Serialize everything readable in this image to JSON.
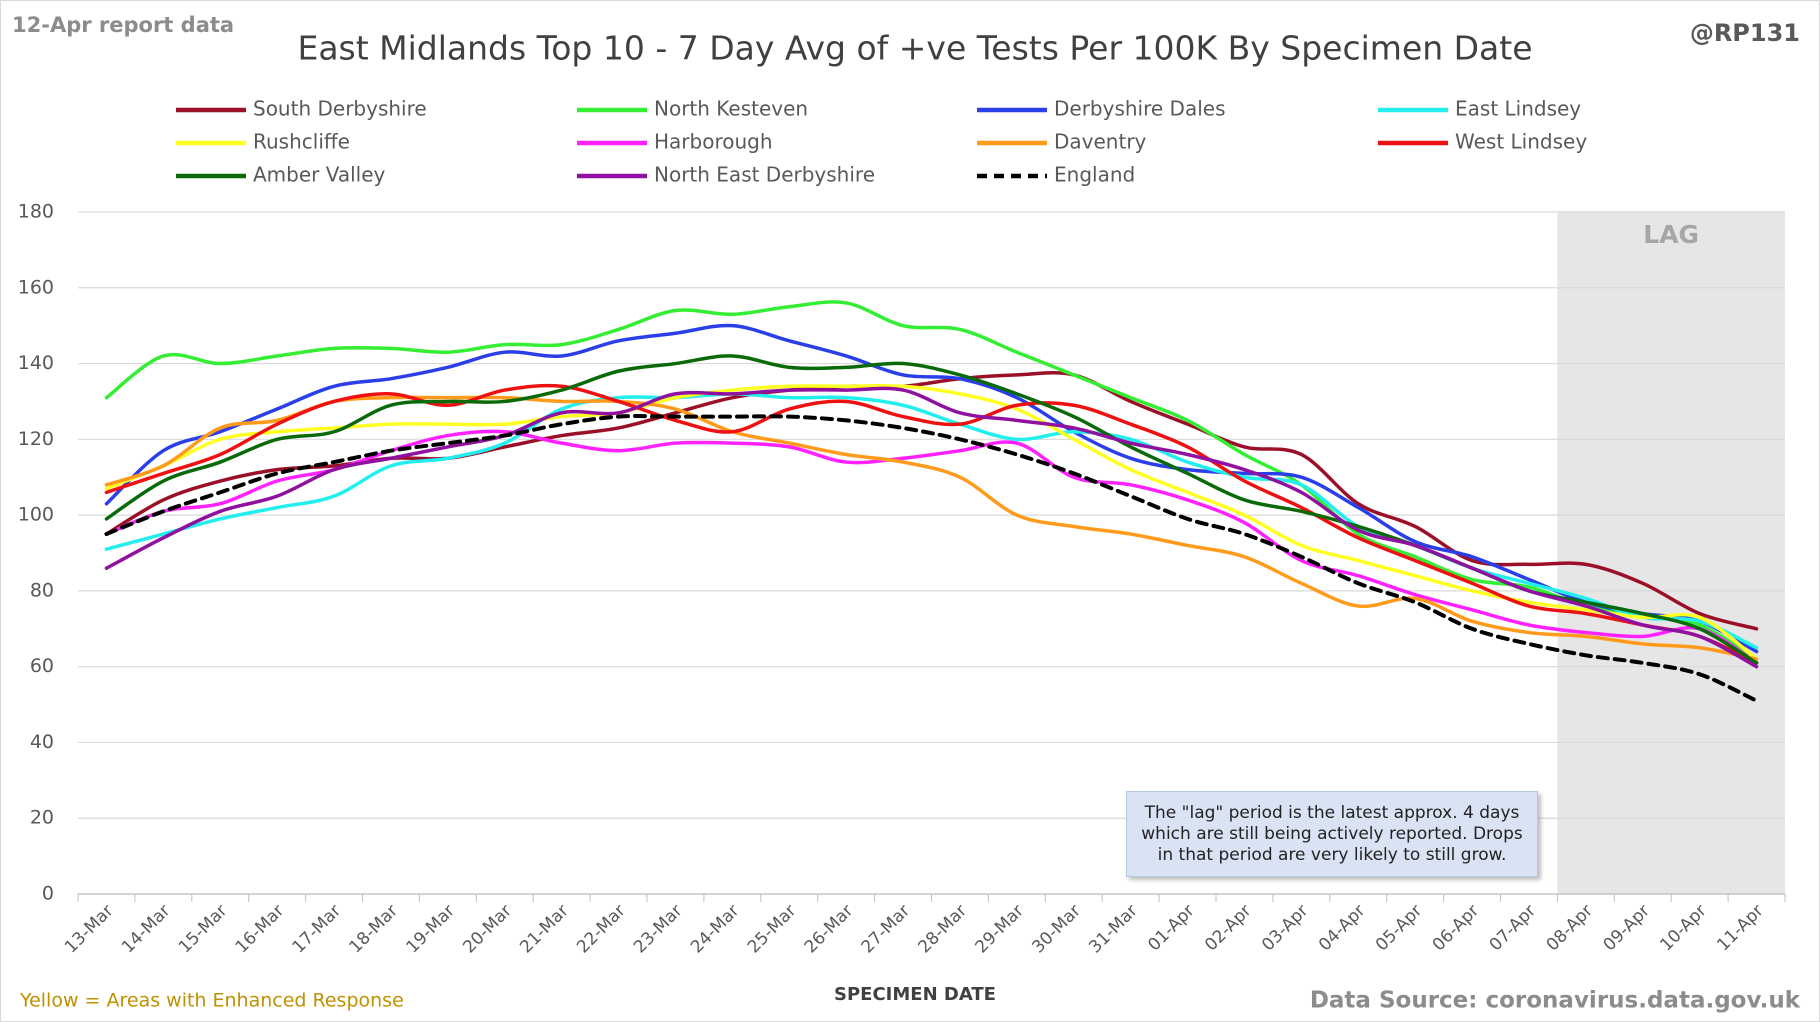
{
  "chart_data": {
    "type": "line",
    "title": "East Midlands Top 10 - 7 Day Avg of +ve Tests Per 100K By Specimen Date",
    "report_note": "12-Apr report data",
    "credit": "@RP131",
    "x_label": "SPECIMEN DATE",
    "footnote": "Yellow = Areas with Enhanced Response",
    "source": "Data Source: coronavirus.data.gov.uk",
    "lag_label": "LAG",
    "lag_from": "08-Apr",
    "annotation": "The \"lag\" period is the latest approx. 4 days which are still being actively reported.  Drops in that period are very likely to still grow.",
    "grid": true,
    "ylim": [
      0,
      180
    ],
    "yticks": [
      0,
      20,
      40,
      60,
      80,
      100,
      120,
      140,
      160,
      180
    ],
    "categories": [
      "13-Mar",
      "14-Mar",
      "15-Mar",
      "16-Mar",
      "17-Mar",
      "18-Mar",
      "19-Mar",
      "20-Mar",
      "21-Mar",
      "22-Mar",
      "23-Mar",
      "24-Mar",
      "25-Mar",
      "26-Mar",
      "27-Mar",
      "28-Mar",
      "29-Mar",
      "30-Mar",
      "31-Mar",
      "01-Apr",
      "02-Apr",
      "03-Apr",
      "04-Apr",
      "05-Apr",
      "06-Apr",
      "07-Apr",
      "08-Apr",
      "09-Apr",
      "10-Apr",
      "11-Apr"
    ],
    "series": [
      {
        "name": "South Derbyshire",
        "color": "#9b1028",
        "values": [
          95,
          104,
          109,
          112,
          113,
          115,
          115,
          118,
          121,
          123,
          127,
          131,
          133,
          134,
          134,
          136,
          137,
          137,
          130,
          124,
          118,
          116,
          103,
          97,
          88,
          87,
          87,
          82,
          74,
          70
        ]
      },
      {
        "name": "North Kesteven",
        "color": "#33ee33",
        "values": [
          131,
          142,
          140,
          142,
          144,
          144,
          143,
          145,
          145,
          149,
          154,
          153,
          155,
          156,
          150,
          149,
          143,
          137,
          131,
          125,
          116,
          108,
          95,
          89,
          83,
          81,
          76,
          74,
          71,
          62
        ]
      },
      {
        "name": "Derbyshire Dales",
        "color": "#2a3fe8",
        "values": [
          103,
          117,
          122,
          128,
          134,
          136,
          139,
          143,
          142,
          146,
          148,
          150,
          146,
          142,
          137,
          136,
          131,
          122,
          115,
          112,
          111,
          110,
          102,
          93,
          89,
          83,
          77,
          74,
          72,
          64
        ]
      },
      {
        "name": "East Lindsey",
        "color": "#22eeee",
        "values": [
          91,
          95,
          99,
          102,
          105,
          113,
          115,
          119,
          128,
          131,
          131,
          132,
          131,
          131,
          129,
          124,
          120,
          122,
          120,
          114,
          110,
          108,
          97,
          92,
          86,
          82,
          78,
          73,
          72,
          65
        ]
      },
      {
        "name": "Rushcliffe",
        "color": "#ffff22",
        "values": [
          107,
          113,
          120,
          122,
          123,
          124,
          124,
          124,
          126,
          127,
          131,
          133,
          134,
          134,
          134,
          132,
          128,
          120,
          112,
          106,
          100,
          92,
          88,
          84,
          80,
          77,
          75,
          73,
          73,
          62
        ]
      },
      {
        "name": "Harborough",
        "color": "#ff22ff",
        "values": [
          95,
          101,
          103,
          109,
          112,
          117,
          121,
          122,
          119,
          117,
          119,
          119,
          118,
          114,
          115,
          117,
          119,
          110,
          108,
          104,
          98,
          88,
          84,
          79,
          75,
          71,
          69,
          68,
          70,
          61
        ]
      },
      {
        "name": "Daventry",
        "color": "#ff9a1a",
        "values": [
          108,
          113,
          123,
          125,
          130,
          131,
          131,
          131,
          130,
          130,
          128,
          122,
          119,
          116,
          114,
          110,
          100,
          97,
          95,
          92,
          89,
          82,
          76,
          78,
          72,
          69,
          68,
          66,
          65,
          62
        ]
      },
      {
        "name": "West Lindsey",
        "color": "#ee1111",
        "values": [
          106,
          111,
          116,
          124,
          130,
          132,
          129,
          133,
          134,
          130,
          125,
          122,
          128,
          130,
          126,
          124,
          129,
          129,
          124,
          118,
          109,
          102,
          94,
          88,
          82,
          76,
          74,
          71,
          68,
          61
        ]
      },
      {
        "name": "Amber Valley",
        "color": "#0a6a0a",
        "values": [
          99,
          109,
          114,
          120,
          122,
          129,
          130,
          130,
          133,
          138,
          140,
          142,
          139,
          139,
          140,
          137,
          132,
          126,
          118,
          111,
          104,
          101,
          97,
          92,
          86,
          80,
          77,
          74,
          70,
          61
        ]
      },
      {
        "name": "North East Derbyshire",
        "color": "#9010a0",
        "values": [
          86,
          94,
          101,
          105,
          112,
          115,
          118,
          121,
          127,
          127,
          132,
          132,
          133,
          133,
          133,
          127,
          125,
          123,
          119,
          116,
          112,
          106,
          96,
          92,
          86,
          80,
          76,
          71,
          68,
          60
        ]
      },
      {
        "name": "England",
        "color": "#000000",
        "dashed": true,
        "values": [
          95,
          101,
          106,
          111,
          114,
          117,
          119,
          121,
          124,
          126,
          126,
          126,
          126,
          125,
          123,
          120,
          116,
          111,
          105,
          99,
          95,
          89,
          82,
          77,
          70,
          66,
          63,
          61,
          58,
          51
        ]
      }
    ]
  }
}
